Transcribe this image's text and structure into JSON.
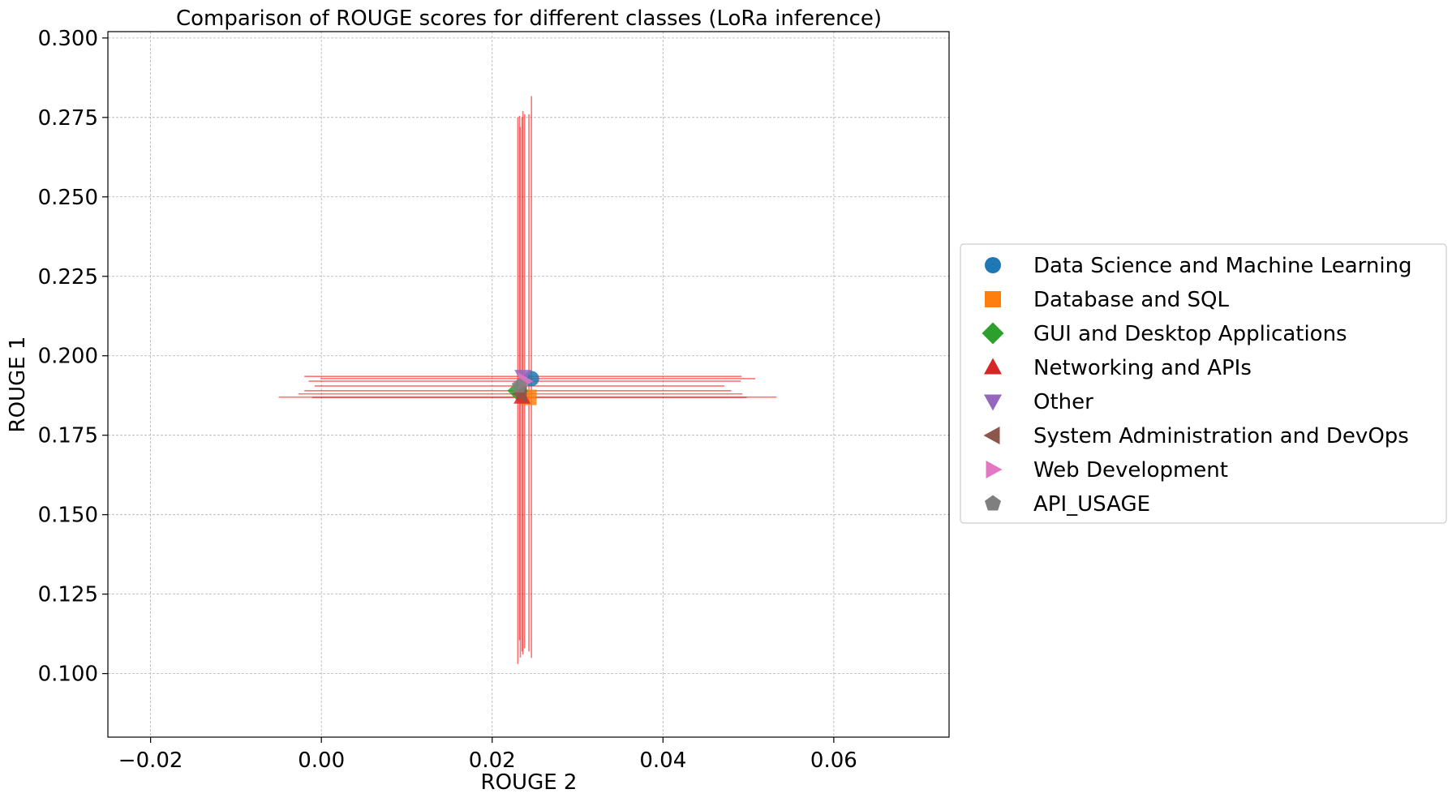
{
  "chart_data": {
    "type": "scatter",
    "title": "Comparison of ROUGE scores for different classes (LoRa inference)",
    "xlabel": "ROUGE 2",
    "ylabel": "ROUGE 1",
    "xlim": [
      -0.025,
      0.0735
    ],
    "ylim": [
      0.08,
      0.302
    ],
    "x_ticks": [
      -0.02,
      0.0,
      0.02,
      0.04,
      0.06
    ],
    "x_tick_labels": [
      "−0.02",
      "0.00",
      "0.02",
      "0.04",
      "0.06"
    ],
    "y_ticks": [
      0.1,
      0.125,
      0.15,
      0.175,
      0.2,
      0.225,
      0.25,
      0.275,
      0.3
    ],
    "y_tick_labels": [
      "0.100",
      "0.125",
      "0.150",
      "0.175",
      "0.200",
      "0.225",
      "0.250",
      "0.275",
      "0.300"
    ],
    "grid": true,
    "legend_position": "outside-right",
    "errorbar_color": "#ff0000",
    "series": [
      {
        "name": "Data Science and Machine Learning",
        "marker": "circle",
        "color": "#1f77b4",
        "x": 0.0246,
        "y": 0.1928,
        "xerr": [
          0.0247,
          0.0262
        ],
        "yerr": [
          0.0879,
          0.0889
        ]
      },
      {
        "name": "Database and SQL",
        "marker": "square",
        "color": "#ff7f0e",
        "x": 0.0243,
        "y": 0.1869,
        "xerr": [
          0.0254,
          0.0255
        ],
        "yerr": [
          0.0799,
          0.0891
        ]
      },
      {
        "name": "GUI and Desktop Applications",
        "marker": "diamond",
        "color": "#2ca02c",
        "x": 0.023,
        "y": 0.189,
        "xerr": [
          0.025,
          0.025
        ],
        "yerr": [
          0.086,
          0.086
        ]
      },
      {
        "name": "Networking and APIs",
        "marker": "triangle-up",
        "color": "#d62728",
        "x": 0.0235,
        "y": 0.187,
        "xerr": [
          0.0285,
          0.0298
        ],
        "yerr": [
          0.08,
          0.088
        ]
      },
      {
        "name": "Other",
        "marker": "triangle-down",
        "color": "#9467bd",
        "x": 0.0236,
        "y": 0.1935,
        "xerr": [
          0.0256,
          0.0256
        ],
        "yerr": [
          0.0875,
          0.0835
        ]
      },
      {
        "name": "System Administration and DevOps",
        "marker": "triangle-left",
        "color": "#8c564b",
        "x": 0.0233,
        "y": 0.188,
        "xerr": [
          0.026,
          0.026
        ],
        "yerr": [
          0.083,
          0.084
        ]
      },
      {
        "name": "Web Development",
        "marker": "triangle-right",
        "color": "#e377c2",
        "x": 0.0238,
        "y": 0.192,
        "xerr": [
          0.0253,
          0.0253
        ],
        "yerr": [
          0.084,
          0.084
        ]
      },
      {
        "name": "API_USAGE",
        "marker": "pentagon",
        "color": "#7f7f7f",
        "x": 0.0232,
        "y": 0.1905,
        "xerr": [
          0.024,
          0.024
        ],
        "yerr": [
          0.08,
          0.085
        ]
      }
    ]
  }
}
